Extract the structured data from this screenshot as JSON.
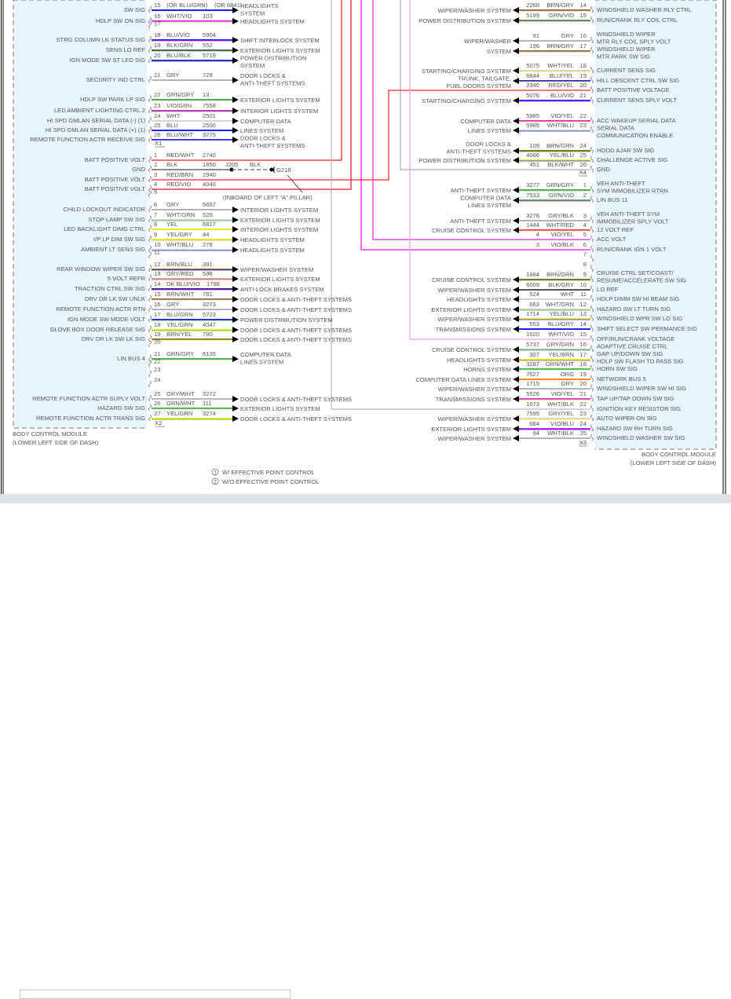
{
  "module": {
    "name": "BODY CONTROL MODULE",
    "location": "(LOWER LEFT SIDE OF DASH)"
  },
  "footnotes": [
    {
      "num": "1",
      "text": "W/ EFFECTIVE POINT CONTROL"
    },
    {
      "num": "2",
      "text": "W/O EFFECTIVE POINT CONTROL"
    }
  ],
  "ground": {
    "splice": "J205",
    "splice_color": "BLK",
    "ground": "G218",
    "note": "(INBOARD OF LEFT \"A\" PILLAR)"
  },
  "wire_colors": {
    "RED": "#ff3b3b",
    "WHT": "#d4d4d4",
    "BLK": "#555555",
    "BLU": "#1f1fff",
    "VIO": "#e020e0",
    "GRN": "#3cb03c",
    "GRY": "#b4b4b4",
    "YEL": "#eeee00",
    "BRN": "#8b6b22",
    "ORG": "#ff8a20",
    "DK BLU": "#2222a0"
  },
  "left": {
    "x1": {
      "id": "X1",
      "pins": [
        {
          "pin": "15",
          "color": "(OR BLU/GRN)",
          "circuit": "(OR 6841)",
          "label": "SW SIG",
          "dest": [
            "HEADLIGHTS",
            "SYSTEM"
          ],
          "wire": "BLU"
        },
        {
          "pin": "16",
          "color": "WHT/VIO",
          "circuit": "103",
          "label": "HDLP SW ON SIG",
          "dest": [
            "HEADLIGHTS SYSTEM"
          ],
          "wire": "VIO/WHT"
        },
        {
          "pin": "17"
        },
        {
          "pin": "18",
          "color": "BLU/VIO",
          "circuit": "5904",
          "label": "STRG COLUMN LK STATUS SIG",
          "dest": [
            "SHIFT INTERLOCK SYSTEM"
          ],
          "wire": "BLU/VIO"
        },
        {
          "pin": "19",
          "color": "BLK/GRN",
          "circuit": "552",
          "label": "SENS LO REF",
          "dest": [
            "EXTERIOR LIGHTS SYSTEM"
          ],
          "wire": "BLK/GRN"
        },
        {
          "pin": "20",
          "color": "BLU/BLK",
          "circuit": "5719",
          "label": "IGN MODE SW ST LED SIG",
          "dest": [
            "POWER DISTRIBUTION",
            "SYSTEM"
          ],
          "wire": "BLU/BLK"
        },
        {
          "pin": "21",
          "color": "GRY",
          "circuit": "728",
          "label": "SECURITY IND CTRL",
          "dest": [
            "DOOR LOCKS &",
            "ANTI-THEFT SYSTEMS"
          ],
          "wire": "GRY"
        },
        {
          "pin": "22",
          "color": "GRN/GRY",
          "circuit": "13",
          "label": "HDLP SW PARK LP SIG",
          "dest": [
            "EXTERIOR LIGHTS SYSTEM"
          ],
          "wire": "GRN/GRY"
        },
        {
          "pin": "23",
          "color": "VIO/GRN",
          "circuit": "7558",
          "label": "LED AMBIENT LIGHTING CTRL 2",
          "dest": [
            "INTERIOR LIGHTS SYSTEM"
          ],
          "wire": "VIO/GRN"
        },
        {
          "pin": "24",
          "color": "WHT",
          "circuit": "2501",
          "label": "HI SPD GMLAN SERIAL DATA (-) (1)",
          "dest": [
            "COMPUTER DATA"
          ],
          "wire": "WHT"
        },
        {
          "pin": "25",
          "color": "BLU",
          "circuit": "2500",
          "label": "HI SPD GMLAN SERIAL DATA (+) (1)",
          "dest": [
            "LINES SYSTEM"
          ],
          "wire": "BLU"
        },
        {
          "pin": "26",
          "color": "BLU/WHT",
          "circuit": "3275",
          "label": "REMOTE FUNCTION ACTR RECEIVE SIG",
          "dest": [
            "DOOR LOCKS &",
            "ANTI-THEFT SYSTEMS"
          ],
          "wire": "BLU/WHT"
        }
      ]
    },
    "x2": {
      "id": "X2",
      "pins": [
        {
          "pin": "1",
          "color": "RED/WHT",
          "circuit": "2740",
          "label": "BATT POSITIVE VOLT",
          "wire": "RED/WHT"
        },
        {
          "pin": "2",
          "color": "BLK",
          "circuit": "1850",
          "label": "GND",
          "wire": "BLK"
        },
        {
          "pin": "3",
          "color": "RED/BRN",
          "circuit": "2940",
          "label": "BATT POSITIVE VOLT",
          "wire": "RED/BRN"
        },
        {
          "pin": "4",
          "color": "RED/VIO",
          "circuit": "4040",
          "label": "BATT POSITIVE VOLT",
          "wire": "RED/VIO"
        },
        {
          "pin": "5"
        },
        {
          "pin": "6",
          "color": "GRY",
          "circuit": "5697",
          "label": "CHILD LOCKOUT INDICATOR",
          "dest": [
            "INTERIOR LIGHTS SYSTEM"
          ],
          "wire": "GRY"
        },
        {
          "pin": "7",
          "color": "WHT/GRN",
          "circuit": "526",
          "label": "STOP LAMP SW SIG",
          "dest": [
            "EXTERIOR LIGHTS SYSTEM"
          ],
          "wire": "WHT/GRN"
        },
        {
          "pin": "8",
          "color": "YEL",
          "circuit": "6817",
          "label": "LED BACKLIGHT DIMG CTRL",
          "dest": [
            "INTERIOR LIGHTS SYSTEM"
          ],
          "wire": "YEL"
        },
        {
          "pin": "9",
          "color": "YEL/GRY",
          "circuit": "44",
          "label": "I/P LP DIM SW SIG",
          "dest": [
            "HEADLIGHTS SYSTEM"
          ],
          "wire": "YEL/GRY"
        },
        {
          "pin": "10",
          "color": "WHT/BLU",
          "circuit": "278",
          "label": "AMBIENT LT SENS SIG",
          "dest": [
            "HEADLIGHTS SYSTEM"
          ],
          "wire": "WHT/BLU"
        },
        {
          "pin": "11"
        },
        {
          "pin": "12",
          "color": "BRN/BLU",
          "circuit": "391",
          "label": "REAR WINDOW WIPER SW SIG",
          "dest": [
            "WIPER/WASHER SYSTEM"
          ],
          "wire": "BRN/BLU"
        },
        {
          "pin": "13",
          "color": "GRY/RED",
          "circuit": "598",
          "label": "5 VOLT REFR",
          "dest": [
            "EXTERIOR LIGHTS SYSTEM"
          ],
          "wire": "GRY/RED"
        },
        {
          "pin": "14",
          "color": "DK BLU/VIO",
          "circuit": "1788",
          "label": "TRACTION CTRL SW SIG",
          "dest": [
            "ANTI-LOCK BRAKES SYSTEM"
          ],
          "wire": "DK BLU/VIO"
        },
        {
          "pin": "15",
          "color": "BRN/WHT",
          "circuit": "781",
          "label": "DRV DR LK SW UNLK",
          "dest": [
            "DOOR LOCKS & ANTI-THEFT SYSTEMS"
          ],
          "wire": "BRN/WHT"
        },
        {
          "pin": "16",
          "color": "GRY",
          "circuit": "3273",
          "label": "REMOTE FUNCTION ACTR RTN",
          "dest": [
            "DOOR LOCKS & ANTI-THEFT SYSTEMS"
          ],
          "wire": "GRY"
        },
        {
          "pin": "17",
          "color": "BLU/GRN",
          "circuit": "5723",
          "label": "IGN MODE SW MODE VOLT",
          "dest": [
            "POWER DISTRIBUTION SYSTEM"
          ],
          "wire": "BLU/GRN"
        },
        {
          "pin": "18",
          "color": "YEL/GRN",
          "circuit": "4047",
          "label": "GLOVE BOX DOOR RELEASE SIG",
          "dest": [
            "DOOR LOCKS & ANTI-THEFT SYSTEMS"
          ],
          "wire": "YEL/GRN"
        },
        {
          "pin": "19",
          "color": "BRN/YEL",
          "circuit": "780",
          "label": "DRV DR LK SW LK SIG",
          "dest": [
            "DOOR LOCKS & ANTI-THEFT SYSTEMS"
          ],
          "wire": "BRN/YEL"
        },
        {
          "pin": "20"
        },
        {
          "pin": "21",
          "color": "GRN/GRY",
          "circuit": "6135",
          "label": "LIN BUS 4",
          "dest": [
            "COMPUTER DATA",
            "LINES SYSTEM"
          ],
          "wire": "GRN/GRY"
        },
        {
          "pin": "22"
        },
        {
          "pin": "23"
        },
        {
          "pin": "24"
        },
        {
          "pin": "25",
          "color": "GRY/WHT",
          "circuit": "3272",
          "label": "REMOTE FUNCTION ACTR SUPLY VOLT",
          "dest": [
            "DOOR LOCKS & ANTI-THEFT SYSTEMS"
          ],
          "wire": "GRY/WHT"
        },
        {
          "pin": "26",
          "color": "GRN/WHT",
          "circuit": "111",
          "label": "HAZARD SW SIG",
          "dest": [
            "EXTERIOR LIGHTS SYSTEM"
          ],
          "wire": "GRN/WHT"
        },
        {
          "pin": "27",
          "color": "YEL/GRN",
          "circuit": "3274",
          "label": "REMOTE FUNCTION ACTR TRANS SIG",
          "dest": [
            "DOOR LOCKS & ANTI-THEFT SYSTEMS"
          ],
          "wire": "YEL/GRN"
        }
      ]
    }
  },
  "right": {
    "x4": {
      "id": "X4",
      "pins": [
        {
          "pin": "14",
          "color": "BRN/GRY",
          "circuit": "2268",
          "label": [
            "WINDSHIELD WASHER RLY CTRL"
          ],
          "dest": [
            "WIPER/WASHER SYSTEM"
          ],
          "wire": "BRN/GRY"
        },
        {
          "pin": "15",
          "color": "GRN/VIO",
          "circuit": "5199",
          "label": [
            "RUN/CRANK RLY COIL CTRL"
          ],
          "dest": [
            "POWER DISTRIBUTION SYSTEM"
          ],
          "wire": "GRN/VIO"
        },
        {
          "pin": "16",
          "color": "GRY",
          "circuit": "91",
          "label": [
            "WINDSHIELD WIPER",
            "MTR RLY COIL SPLY VOLT"
          ],
          "dest": [
            "WIPER/WASHER"
          ],
          "wire": "GRY"
        },
        {
          "pin": "17",
          "color": "BRN/GRY",
          "circuit": "196",
          "label": [
            "WINDSHIELD WIPER",
            "MTR PARK SW SIG"
          ],
          "dest": [
            "SYSTEM"
          ],
          "wire": "BRN/GRY"
        },
        {
          "pin": "18",
          "color": "WHT/YEL",
          "circuit": "5075",
          "label": [
            "CURRENT SENS SIG"
          ],
          "dest": [
            "STARTING/CHARGING SYSTEM"
          ],
          "wire": "WHT/YEL"
        },
        {
          "pin": "19",
          "color": "BLU/YEL",
          "circuit": "6844",
          "label": [
            "HILL DESCENT CTRL SW SIG"
          ],
          "dest": [
            "TRUNK, TAILGATE,",
            "FUEL DOORS SYSTEM"
          ],
          "wire": "BLU/YEL"
        },
        {
          "pin": "20",
          "color": "RED/YEL",
          "circuit": "2340",
          "label": [
            "BATT POSITIVE VOLTAGE"
          ],
          "wire": "RED/YEL"
        },
        {
          "pin": "21",
          "color": "BLU/VIO",
          "circuit": "5076",
          "label": [
            "CURRENT SENS SPLY VOLT"
          ],
          "dest": [
            "STARTING/CHARGING SYSTEM"
          ],
          "wire": "BLU/VIO"
        },
        {
          "pin": "22",
          "color": "VIO/YEL",
          "circuit": "5985",
          "label": [
            "ACC WAKEUP SERIAL DATA"
          ],
          "dest": [
            "COMPUTER DATA"
          ],
          "wire": "VIO/YEL"
        },
        {
          "pin": "23",
          "color": "WHT/BLU",
          "circuit": "5986",
          "label": [
            "SERIAL DATA",
            "COMMUNICATION ENABLE"
          ],
          "dest": [
            "LINES SYSTEM"
          ],
          "wire": "WHT/BLU"
        },
        {
          "pin": "24",
          "color": "BRN/GRN",
          "circuit": "109",
          "label": [
            "HOOD AJAR SW SIG"
          ],
          "dest": [
            "DOOR LOCKS &",
            "ANTI-THEFT SYSTEMS"
          ],
          "wire": "BRN/GRN"
        },
        {
          "pin": "25",
          "color": "YEL/BLU",
          "circuit": "4086",
          "label": [
            "CHALLENGE ACTIVE SIG"
          ],
          "dest": [
            "POWER DISTRIBUTION SYSTEM"
          ],
          "wire": "YEL/BLU"
        },
        {
          "pin": "26",
          "color": "BLK/WHT",
          "circuit": "451",
          "label": [
            "GND"
          ],
          "wire": "GRY"
        }
      ]
    },
    "x3": {
      "id": "X3",
      "pins": [
        {
          "pin": "1",
          "color": "GRN/GRY",
          "circuit": "3277",
          "label": [
            "VEH ANTI-THEFT",
            "SYM IMMOBILIZER RTRN"
          ],
          "dest": [
            "ANTI-THEFT SYSTEM"
          ],
          "wire": "GRN/GRY"
        },
        {
          "pin": "2",
          "color": "GRN/VIO",
          "circuit": "7533",
          "label": [
            "LIN BUS 11"
          ],
          "dest": [
            "COMPUTER DATA",
            "LINES SYSTEM"
          ],
          "wire": "GRN/VIO"
        },
        {
          "pin": "3",
          "color": "GRY/BLK",
          "circuit": "3276",
          "label": [
            "VEH ANTI-THEFT SYM",
            "IMMOBILIZER SPLY VOLT"
          ],
          "dest": [
            "ANTI-THEFT SYSTEM"
          ],
          "wire": "GRY"
        },
        {
          "pin": "4",
          "color": "WHT/RED",
          "circuit": "1444",
          "label": [
            "12 VOLT REF"
          ],
          "dest": [
            "CRUISE CONTROL SYSTEM"
          ],
          "wire": "RED/WHT"
        },
        {
          "pin": "5",
          "color": "VIO/YEL",
          "circuit": "4",
          "label": [
            "ACC VOLT"
          ],
          "wire": "VIO"
        },
        {
          "pin": "6",
          "color": "VIO/BLK",
          "circuit": "3",
          "label": [
            "RUN/CRANK IGN 1 VOLT"
          ],
          "wire": "VIO"
        },
        {
          "pin": "7"
        },
        {
          "pin": "8"
        },
        {
          "pin": "9",
          "color": "BRN/GRN",
          "circuit": "1884",
          "label": [
            "CRUISE CTRL SET/COAST/",
            "RESUME/ACCELERATE SW SIG"
          ],
          "dest": [
            "CRUISE CONTROL SYSTEM"
          ],
          "wire": "BRN/GRN"
        },
        {
          "pin": "10",
          "color": "BLK/GRY",
          "circuit": "6009",
          "label": [
            "LO REF"
          ],
          "dest": [
            "WIPER/WASHER SYSTEM"
          ],
          "wire": "BLK"
        },
        {
          "pin": "11",
          "color": "WHT",
          "circuit": "524",
          "label": [
            "HDLP DIMM SW HI BEAM SIG"
          ],
          "dest": [
            "HEADLIGHTS SYSTEM"
          ],
          "wire": "WHT"
        },
        {
          "pin": "12",
          "color": "WHT/GRN",
          "circuit": "663",
          "label": [
            "HAZARD SW LT TURN SIG"
          ],
          "dest": [
            "EXTERIOR LIGHTS SYSTEM"
          ],
          "wire": "WHT/GRN"
        },
        {
          "pin": "13",
          "color": "YEL/BLU",
          "circuit": "1714",
          "label": [
            "WINDSHIELD WPR SW LO SIG"
          ],
          "dest": [
            "WIPER/WASHER SYSTEM"
          ],
          "wire": "YEL/BLU"
        },
        {
          "pin": "14",
          "color": "BLU/GRY",
          "circuit": "553",
          "label": [
            "SHIFT SELECT SW PERMANCE SIG"
          ],
          "dest": [
            "TRANSMISSIONS SYSTEM"
          ],
          "wire": "BLU"
        },
        {
          "pin": "15",
          "color": "WHT/VIO",
          "circuit": "1020",
          "label": [
            "OFF/RUN/CRANK VOLTAGE"
          ],
          "wire": "VIO/WHT"
        },
        {
          "pin": "16",
          "color": "GRY/GRN",
          "circuit": "5737",
          "label": [
            "ADAPTIVE CRUISE CTRL",
            "GAP UP/DOWN SW SIG"
          ],
          "dest": [
            "CRUISE CONTROL SYSTEM"
          ],
          "wire": "GRY/GRN"
        },
        {
          "pin": "17",
          "color": "YEL/BRN",
          "circuit": "307",
          "label": [
            "HDLP SW FLASH TO PASS SIG"
          ],
          "dest": [
            "HEADLIGHTS SYSTEM"
          ],
          "wire": "YEL/BRN"
        },
        {
          "pin": "18",
          "color": "GRN/WHT",
          "circuit": "3287",
          "label": [
            "HORN SW SIG"
          ],
          "dest": [
            "HORNS SYSTEM"
          ],
          "wire": "GRN/WHT"
        },
        {
          "pin": "19",
          "color": "ORG",
          "circuit": "7527",
          "label": [
            "NETWORK BUS 5"
          ],
          "dest": [
            "COMPUTER DATA LINES SYSTEM"
          ],
          "wire": "ORG"
        },
        {
          "pin": "20",
          "color": "GRY",
          "circuit": "1715",
          "label": [
            "WINDSHIELD WIPER SW HI SIG"
          ],
          "dest": [
            "WIPER/WASHER SYSTEM"
          ],
          "wire": "GRY"
        },
        {
          "pin": "21",
          "color": "VIO/YEL",
          "circuit": "5526",
          "label": [
            "TAP UP/TAP DOWN SW SIG"
          ],
          "dest": [
            "TRANSMISSIONS SYSTEM"
          ],
          "wire": "VIO/YEL"
        },
        {
          "pin": "22",
          "color": "WHT/BLK",
          "circuit": "1073",
          "label": [
            "IGNITION KEY RESISTOR SIG"
          ],
          "wire": "GRY"
        },
        {
          "pin": "23",
          "color": "GRY/YEL",
          "circuit": "7595",
          "label": [
            "AUTO WIPER ON SIG"
          ],
          "dest": [
            "WIPER/WASHER SYSTEM"
          ],
          "wire": "WHT/YEL"
        },
        {
          "pin": "24",
          "color": "VIO/BLU",
          "circuit": "664",
          "label": [
            "HAZARD SW RH TURN SIG"
          ],
          "dest": [
            "EXTERIOR LIGHTS SYSTEM"
          ],
          "wire": "VIO/BLU"
        },
        {
          "pin": "25",
          "color": "WHT/BLK",
          "circuit": "94",
          "label": [
            "WINDSHIELD WASHER SW SIG"
          ],
          "dest": [
            "WIPER/WASHER SYSTEM"
          ],
          "wire": "GRY"
        }
      ]
    }
  }
}
